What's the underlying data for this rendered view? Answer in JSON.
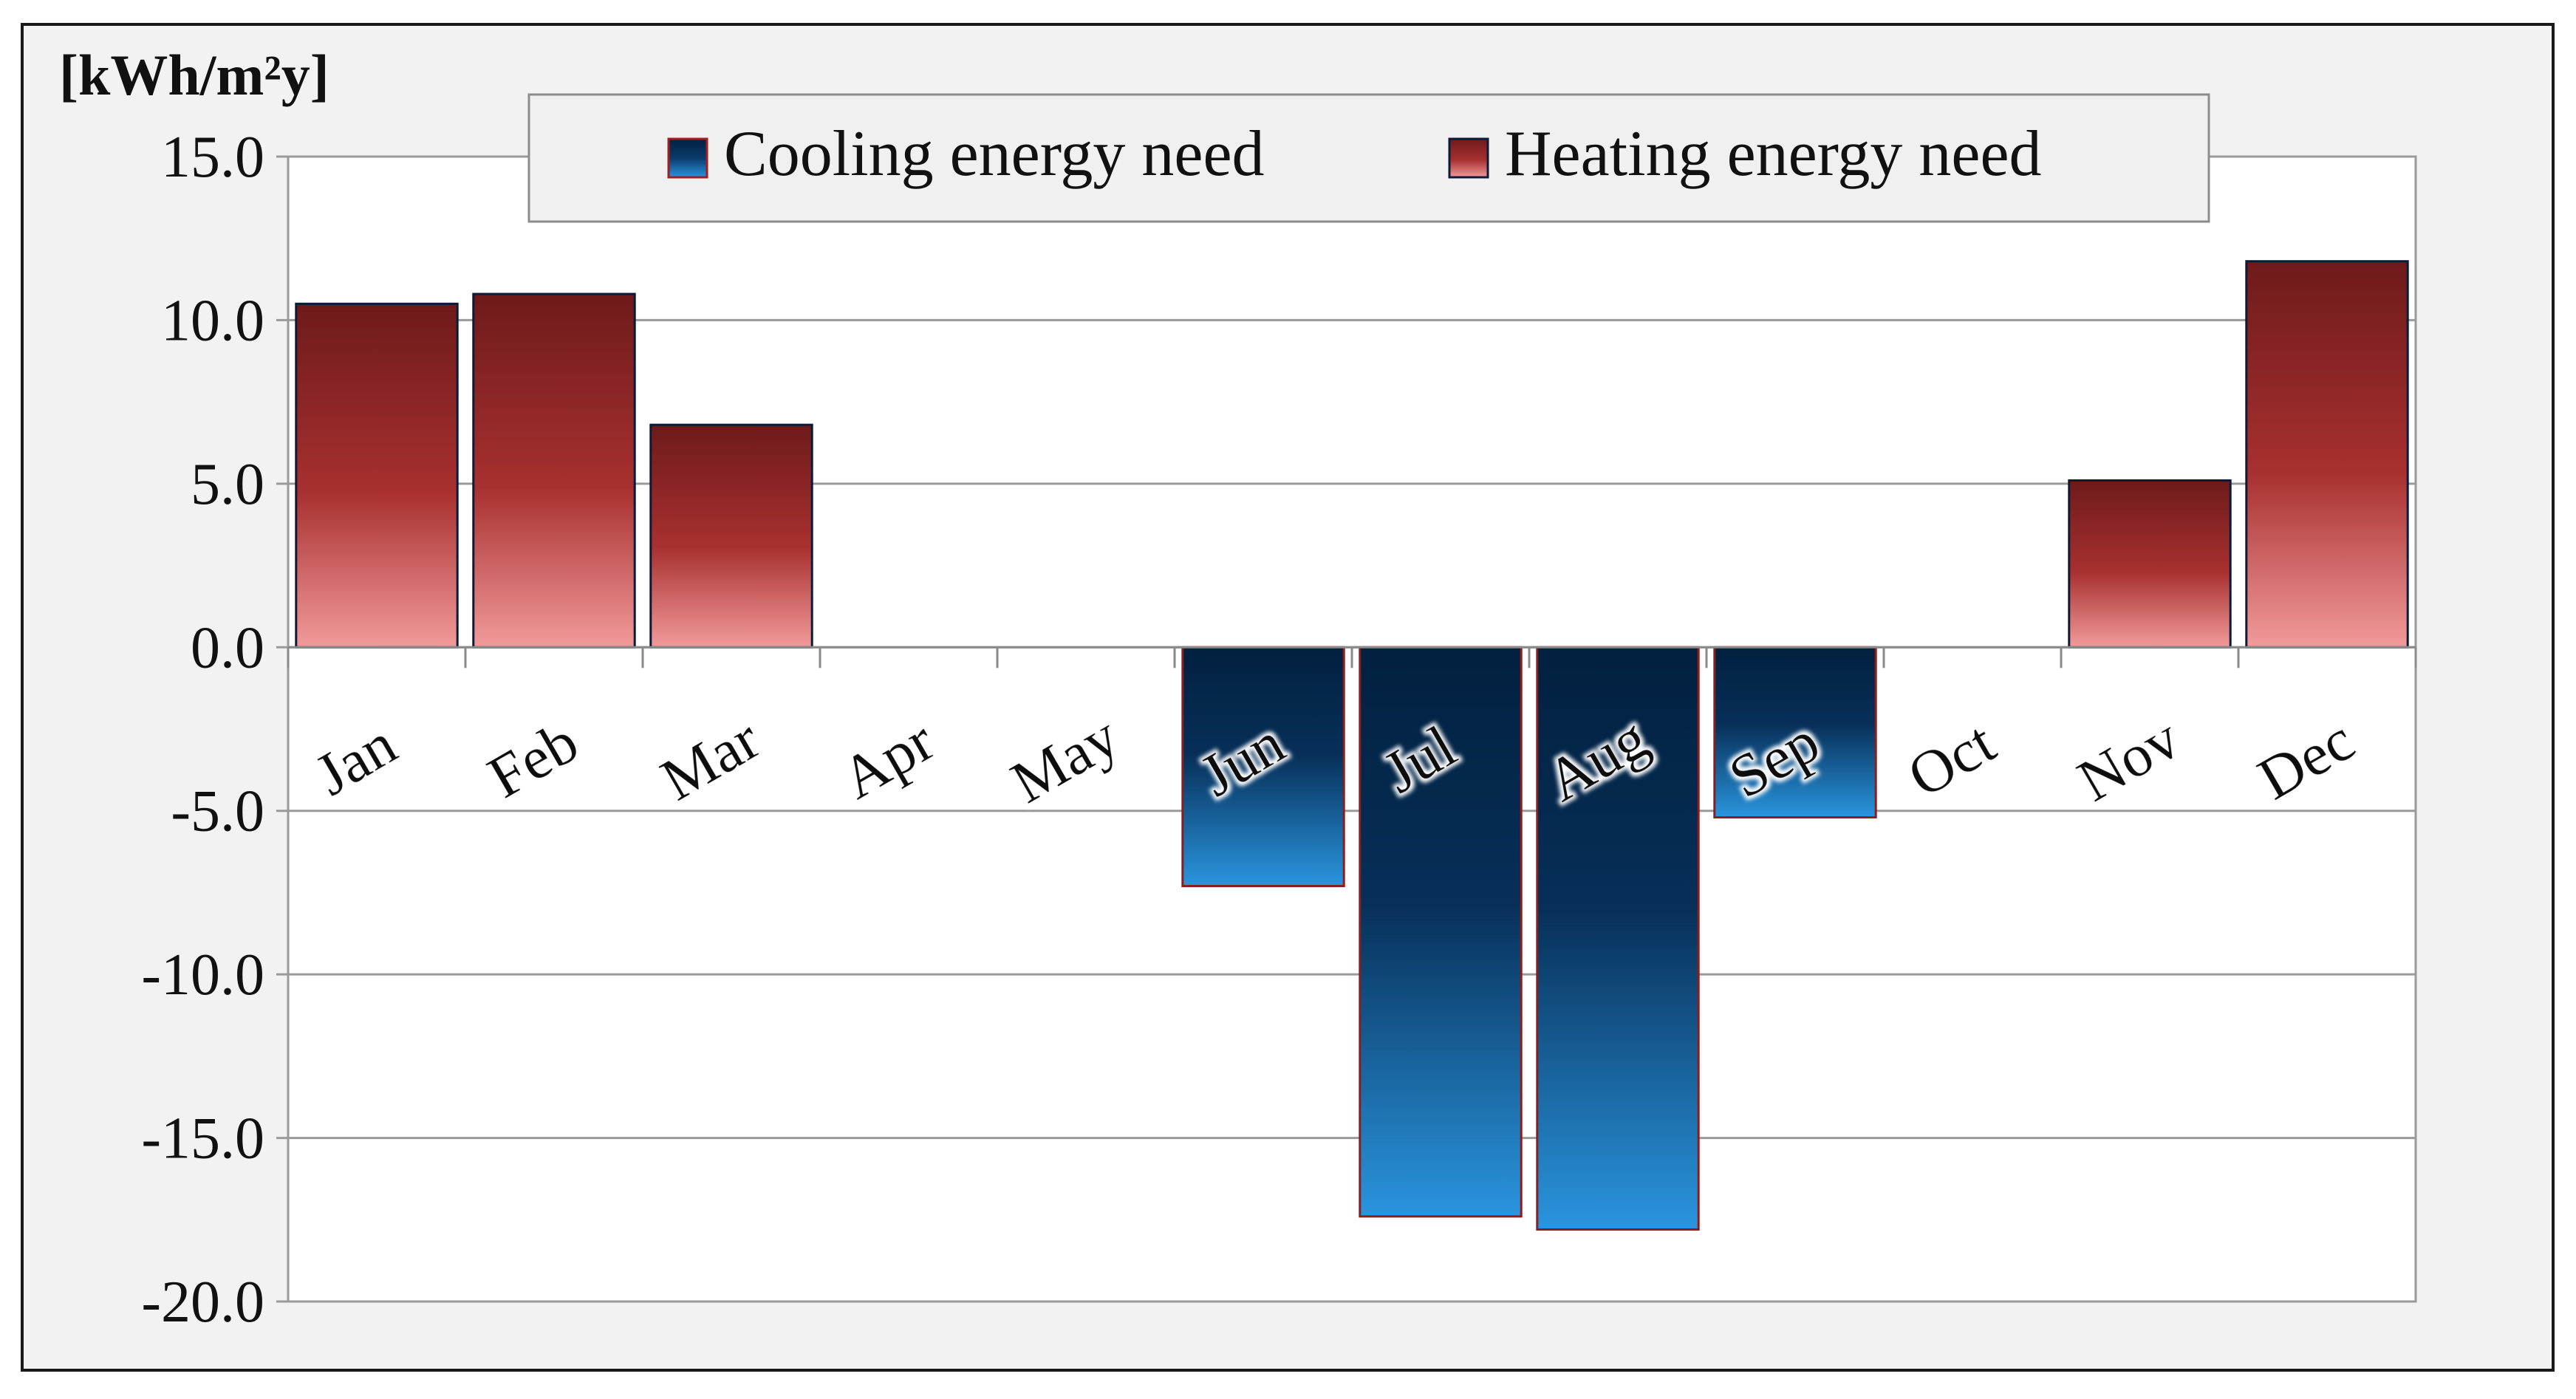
{
  "chart_data": {
    "type": "bar",
    "title": "",
    "ylabel": "[kWh/m²y]",
    "xlabel": "",
    "categories": [
      "Jan",
      "Feb",
      "Mar",
      "Apr",
      "May",
      "Jun",
      "Jul",
      "Aug",
      "Sep",
      "Oct",
      "Nov",
      "Dec"
    ],
    "ylim": [
      -20.0,
      15.0
    ],
    "yticks": [
      15.0,
      10.0,
      5.0,
      0.0,
      -5.0,
      -10.0,
      -15.0,
      -20.0
    ],
    "ytick_labels": [
      "15.0",
      "10.0",
      "5.0",
      "0.0",
      "-5.0",
      "-10.0",
      "-15.0",
      "-20.0"
    ],
    "grid": true,
    "legend_position": "top-center",
    "series": [
      {
        "name": "Cooling energy need",
        "values": [
          0,
          0,
          0,
          0,
          0,
          -7.3,
          -17.4,
          -17.8,
          -5.2,
          0,
          0,
          0
        ],
        "color_top": "#02203f",
        "color_bottom": "#2a95de",
        "border": "#7a1a1a"
      },
      {
        "name": "Heating energy need",
        "values": [
          10.5,
          10.8,
          6.8,
          0,
          0,
          0,
          0,
          0,
          0,
          0,
          5.1,
          11.8
        ],
        "color_top": "#6e1a1a",
        "color_bottom": "#f29a9a",
        "border": "#0c1a3a"
      }
    ]
  },
  "legend": {
    "cooling_label": "Cooling energy need",
    "heating_label": "Heating energy need"
  }
}
